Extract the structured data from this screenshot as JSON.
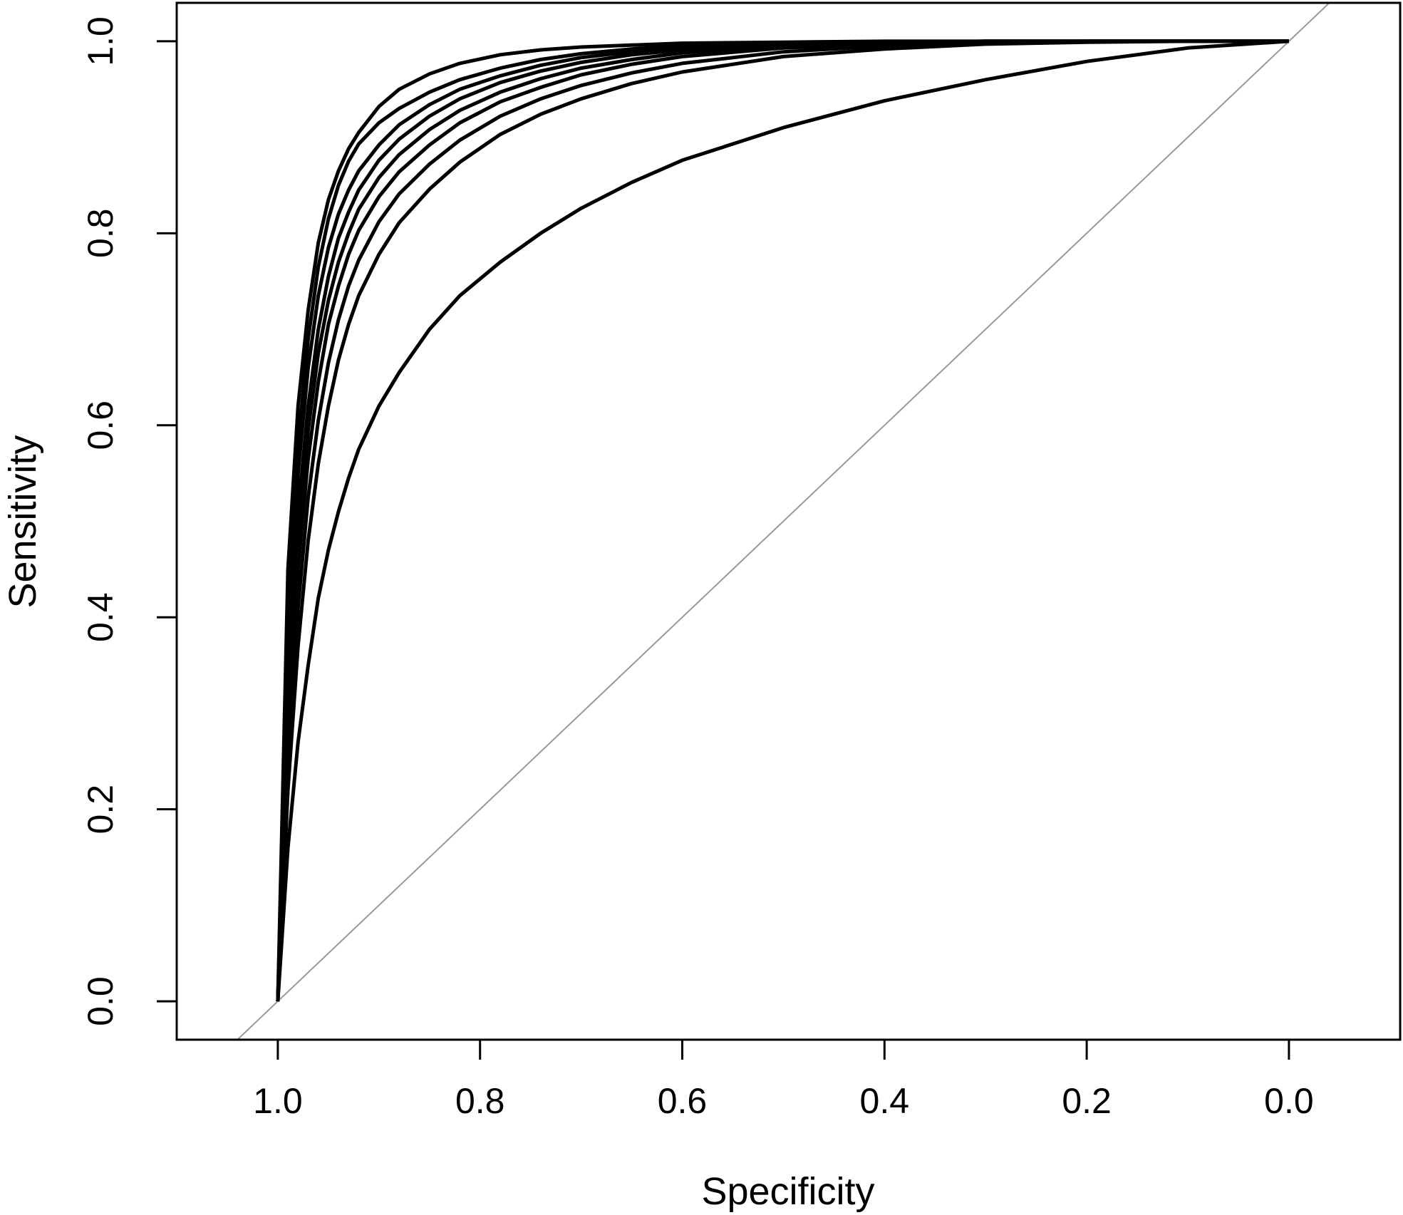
{
  "chart_data": {
    "type": "line",
    "title": "",
    "xlabel": "Specificity",
    "ylabel": "Sensitivity",
    "x_reversed": true,
    "xlim": [
      1.1,
      -0.11
    ],
    "ylim": [
      -0.04,
      1.04
    ],
    "xticks": [
      "1.0",
      "0.8",
      "0.6",
      "0.4",
      "0.2",
      "0.0"
    ],
    "yticks": [
      "0.0",
      "0.2",
      "0.4",
      "0.6",
      "0.8",
      "1.0"
    ],
    "grid": false,
    "reference_line": {
      "description": "diagonal chance line",
      "color": "#999999"
    },
    "line_color": "#000000",
    "series": [
      {
        "x": [
          1.0,
          0.99,
          0.98,
          0.97,
          0.96,
          0.95,
          0.94,
          0.93,
          0.92,
          0.9,
          0.88,
          0.85,
          0.82,
          0.78,
          0.74,
          0.7,
          0.65,
          0.6,
          0.5,
          0.4,
          0.3,
          0.2,
          0.1,
          0.0
        ],
        "y": [
          0.0,
          0.45,
          0.62,
          0.72,
          0.79,
          0.835,
          0.865,
          0.888,
          0.905,
          0.932,
          0.95,
          0.966,
          0.977,
          0.986,
          0.991,
          0.994,
          0.996,
          0.998,
          0.999,
          1.0,
          1.0,
          1.0,
          1.0,
          1.0
        ]
      },
      {
        "x": [
          1.0,
          0.99,
          0.98,
          0.97,
          0.96,
          0.95,
          0.94,
          0.93,
          0.92,
          0.9,
          0.88,
          0.85,
          0.82,
          0.78,
          0.74,
          0.7,
          0.65,
          0.6,
          0.5,
          0.4,
          0.3,
          0.2,
          0.1,
          0.0
        ],
        "y": [
          0.0,
          0.4,
          0.58,
          0.69,
          0.765,
          0.815,
          0.85,
          0.875,
          0.893,
          0.915,
          0.93,
          0.947,
          0.96,
          0.972,
          0.981,
          0.987,
          0.992,
          0.995,
          0.998,
          0.999,
          1.0,
          1.0,
          1.0,
          1.0
        ]
      },
      {
        "x": [
          1.0,
          0.99,
          0.98,
          0.97,
          0.96,
          0.95,
          0.94,
          0.93,
          0.92,
          0.9,
          0.88,
          0.85,
          0.82,
          0.78,
          0.74,
          0.7,
          0.65,
          0.6,
          0.5,
          0.4,
          0.3,
          0.2,
          0.1,
          0.0
        ],
        "y": [
          0.0,
          0.37,
          0.55,
          0.66,
          0.735,
          0.785,
          0.82,
          0.845,
          0.865,
          0.892,
          0.913,
          0.934,
          0.95,
          0.964,
          0.975,
          0.983,
          0.989,
          0.993,
          0.997,
          0.999,
          1.0,
          1.0,
          1.0,
          1.0
        ]
      },
      {
        "x": [
          1.0,
          0.99,
          0.98,
          0.97,
          0.96,
          0.95,
          0.94,
          0.93,
          0.92,
          0.9,
          0.88,
          0.85,
          0.82,
          0.78,
          0.74,
          0.7,
          0.65,
          0.6,
          0.5,
          0.4,
          0.3,
          0.2,
          0.1,
          0.0
        ],
        "y": [
          0.0,
          0.33,
          0.51,
          0.62,
          0.7,
          0.755,
          0.795,
          0.822,
          0.845,
          0.876,
          0.898,
          0.922,
          0.94,
          0.957,
          0.969,
          0.978,
          0.986,
          0.991,
          0.996,
          0.998,
          1.0,
          1.0,
          1.0,
          1.0
        ]
      },
      {
        "x": [
          1.0,
          0.99,
          0.98,
          0.97,
          0.96,
          0.95,
          0.94,
          0.93,
          0.92,
          0.9,
          0.88,
          0.85,
          0.82,
          0.78,
          0.74,
          0.7,
          0.65,
          0.6,
          0.5,
          0.4,
          0.3,
          0.2,
          0.1,
          0.0
        ],
        "y": [
          0.0,
          0.3,
          0.48,
          0.595,
          0.675,
          0.73,
          0.77,
          0.8,
          0.825,
          0.858,
          0.882,
          0.908,
          0.928,
          0.947,
          0.961,
          0.972,
          0.981,
          0.988,
          0.995,
          0.998,
          1.0,
          1.0,
          1.0,
          1.0
        ]
      },
      {
        "x": [
          1.0,
          0.99,
          0.98,
          0.97,
          0.96,
          0.95,
          0.94,
          0.93,
          0.92,
          0.9,
          0.88,
          0.85,
          0.82,
          0.78,
          0.74,
          0.7,
          0.65,
          0.6,
          0.5,
          0.4,
          0.3,
          0.2,
          0.1,
          0.0
        ],
        "y": [
          0.0,
          0.28,
          0.45,
          0.565,
          0.645,
          0.705,
          0.745,
          0.778,
          0.803,
          0.838,
          0.864,
          0.892,
          0.915,
          0.937,
          0.952,
          0.965,
          0.976,
          0.984,
          0.993,
          0.997,
          0.999,
          1.0,
          1.0,
          1.0
        ]
      },
      {
        "x": [
          1.0,
          0.99,
          0.98,
          0.97,
          0.96,
          0.95,
          0.94,
          0.93,
          0.92,
          0.9,
          0.88,
          0.85,
          0.82,
          0.78,
          0.74,
          0.7,
          0.65,
          0.6,
          0.5,
          0.4,
          0.3,
          0.2,
          0.1,
          0.0
        ],
        "y": [
          0.0,
          0.25,
          0.41,
          0.525,
          0.605,
          0.665,
          0.71,
          0.745,
          0.772,
          0.812,
          0.841,
          0.872,
          0.897,
          0.922,
          0.94,
          0.954,
          0.967,
          0.977,
          0.989,
          0.995,
          0.998,
          1.0,
          1.0,
          1.0
        ]
      },
      {
        "x": [
          1.0,
          0.99,
          0.98,
          0.97,
          0.96,
          0.95,
          0.94,
          0.93,
          0.92,
          0.9,
          0.88,
          0.85,
          0.82,
          0.78,
          0.74,
          0.7,
          0.65,
          0.6,
          0.5,
          0.4,
          0.3,
          0.2,
          0.1,
          0.0
        ],
        "y": [
          0.0,
          0.22,
          0.37,
          0.48,
          0.56,
          0.62,
          0.668,
          0.705,
          0.735,
          0.778,
          0.811,
          0.846,
          0.874,
          0.903,
          0.924,
          0.94,
          0.956,
          0.968,
          0.984,
          0.992,
          0.997,
          0.999,
          1.0,
          1.0
        ]
      },
      {
        "x": [
          1.0,
          0.99,
          0.98,
          0.97,
          0.96,
          0.95,
          0.94,
          0.93,
          0.92,
          0.9,
          0.88,
          0.85,
          0.82,
          0.78,
          0.74,
          0.7,
          0.65,
          0.6,
          0.5,
          0.4,
          0.3,
          0.2,
          0.1,
          0.0
        ],
        "y": [
          0.0,
          0.16,
          0.27,
          0.35,
          0.42,
          0.47,
          0.51,
          0.545,
          0.575,
          0.62,
          0.655,
          0.7,
          0.735,
          0.77,
          0.8,
          0.826,
          0.853,
          0.876,
          0.91,
          0.938,
          0.96,
          0.979,
          0.993,
          1.0
        ]
      }
    ]
  }
}
